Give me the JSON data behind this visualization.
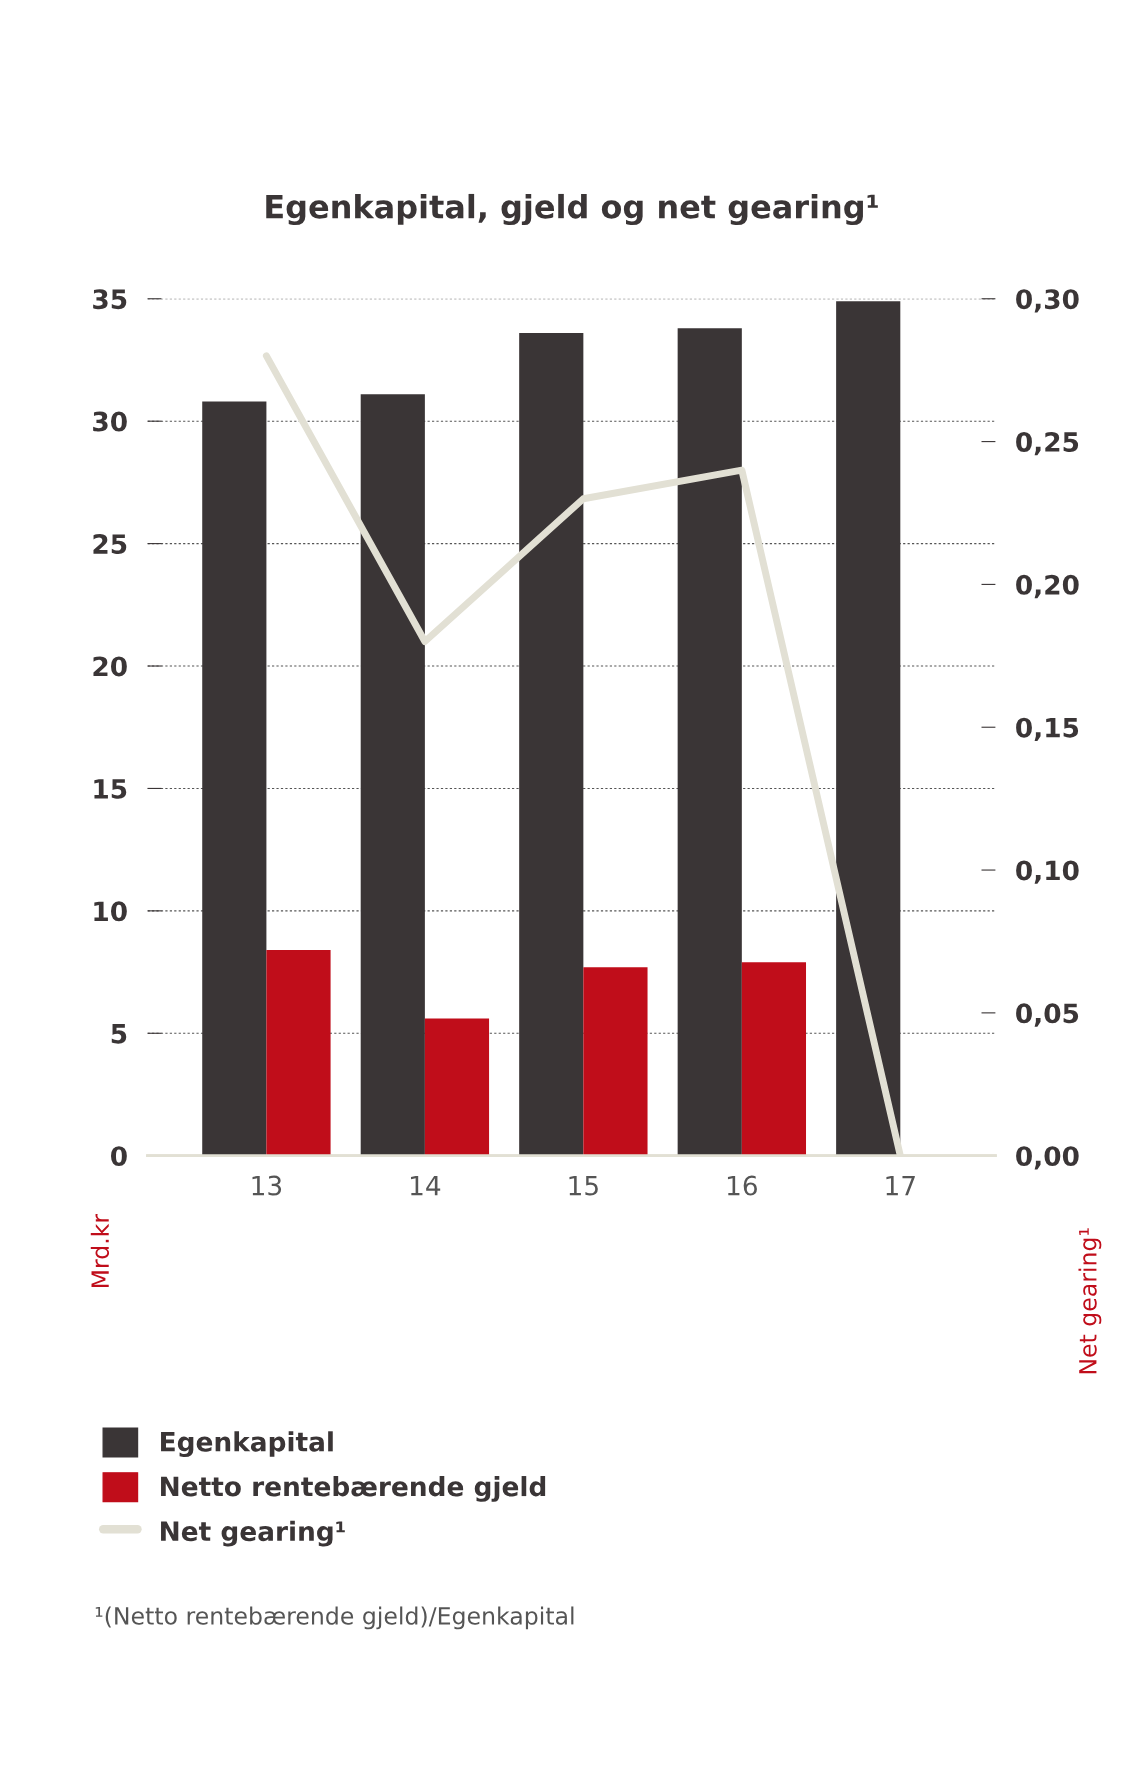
{
  "chart_data": {
    "type": "bar",
    "title": "Egenkapital, gjeld og net gearing¹",
    "ylabel": "Mrd.kr",
    "y2label": "Net gearing¹",
    "categories": [
      "13",
      "14",
      "15",
      "16",
      "17"
    ],
    "series": [
      {
        "name": "Egenkapital",
        "color": "#3a3536",
        "values": [
          30.8,
          31.1,
          33.6,
          33.8,
          34.9
        ]
      },
      {
        "name": "Netto rentebærende gjeld",
        "color": "#c00d1a",
        "values": [
          8.4,
          5.6,
          7.7,
          7.9,
          null
        ]
      },
      {
        "name": "Net gearing¹",
        "type": "line",
        "axis": "y2",
        "color": "#e2e0d4",
        "values": [
          0.28,
          0.18,
          0.23,
          0.24,
          0.0
        ]
      }
    ],
    "ylim": [
      0,
      35
    ],
    "yticks": [
      0,
      5,
      10,
      15,
      20,
      25,
      30,
      35
    ],
    "y2lim": [
      0,
      0.3
    ],
    "y2ticks": [
      {
        "value": 0,
        "label": "0,00"
      },
      {
        "value": 0.05,
        "label": "0,05"
      },
      {
        "value": 0.1,
        "label": "0,10"
      },
      {
        "value": 0.15,
        "label": "0,15"
      },
      {
        "value": 0.2,
        "label": "0,20"
      },
      {
        "value": 0.25,
        "label": "0,25"
      },
      {
        "value": 0.3,
        "label": "0,30"
      }
    ],
    "grid": "y",
    "legend": "bottom",
    "marker": "none",
    "line_style": "solid",
    "annotations": [
      "¹(Netto rentebærende gjeld)/Egenkapital"
    ]
  }
}
